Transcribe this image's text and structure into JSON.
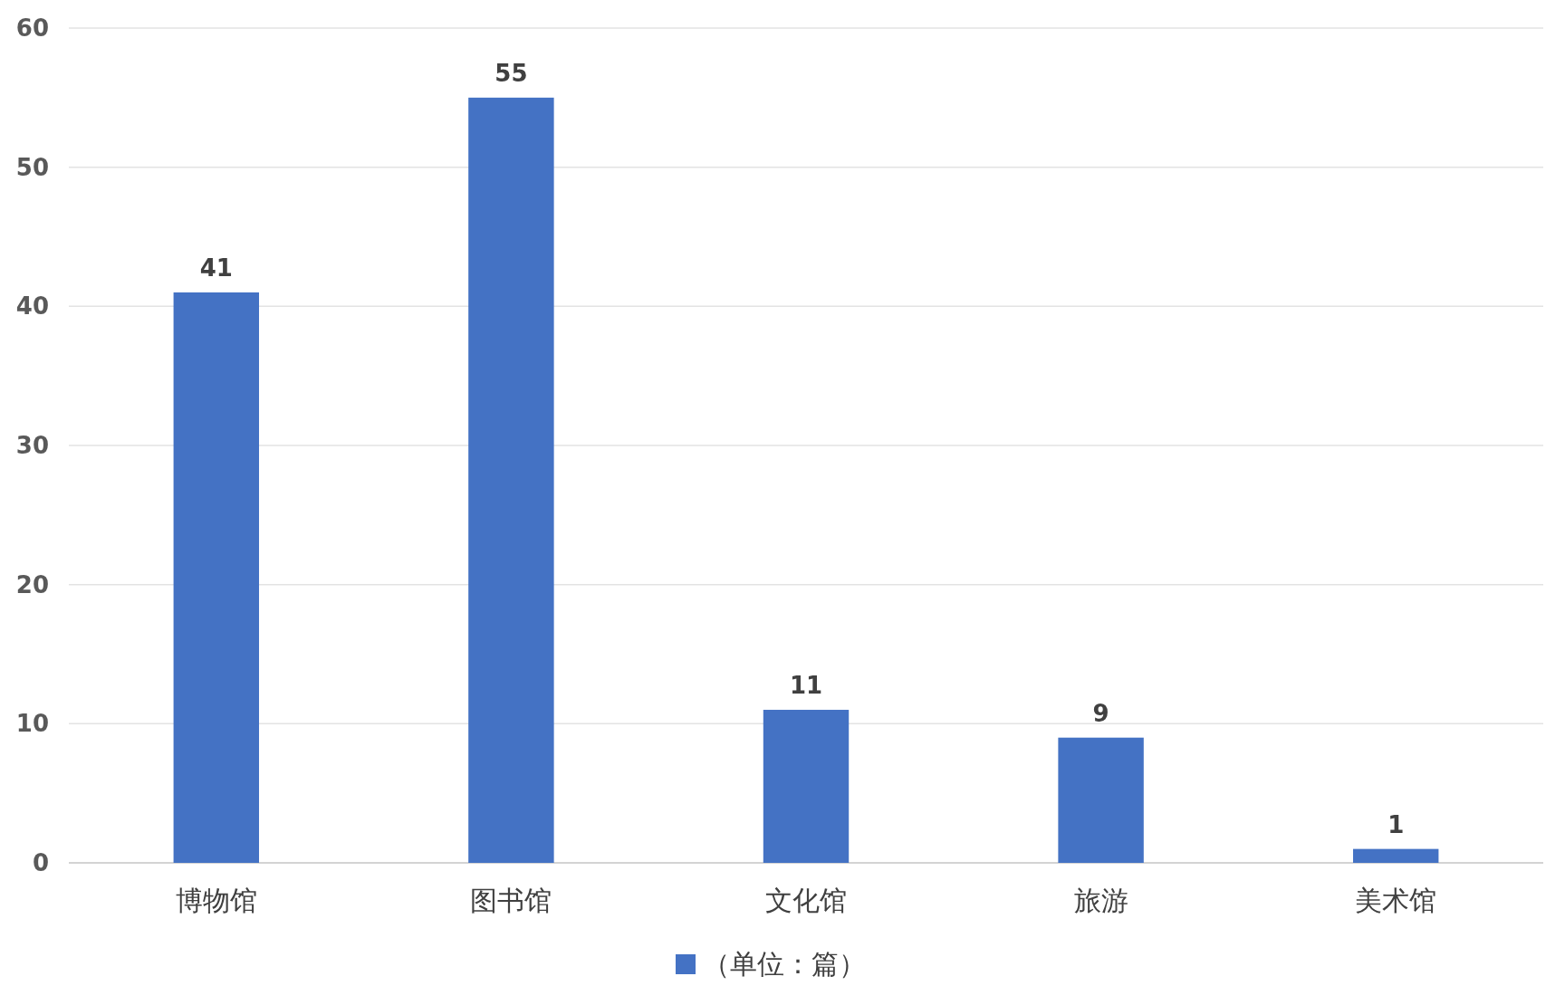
{
  "chart_data": {
    "type": "bar",
    "categories": [
      "博物馆",
      "图书馆",
      "文化馆",
      "旅游",
      "美术馆"
    ],
    "series": [
      {
        "name": "（单位：篇）",
        "color": "#4472c4",
        "values": [
          41,
          55,
          11,
          9,
          1
        ]
      }
    ],
    "ylim": [
      0,
      60
    ],
    "yticks": [
      0,
      10,
      20,
      30,
      40,
      50,
      60
    ],
    "grid": "y",
    "legend": "bottom",
    "data_labels": true
  }
}
